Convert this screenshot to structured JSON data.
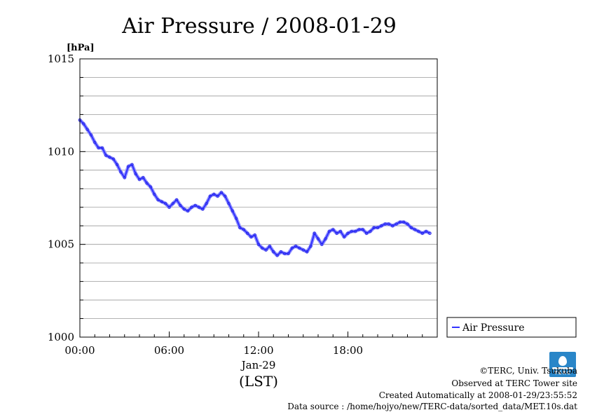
{
  "chart_data": {
    "type": "line",
    "title": "Air Pressure / 2008-01-29",
    "ylabel": "[hPa]",
    "xlabel": "(LST)",
    "x_date_label": "Jan-29",
    "ylim": [
      1000,
      1015
    ],
    "xlim": [
      0,
      24
    ],
    "y_ticks": [
      1000,
      1005,
      1010,
      1015
    ],
    "y_minor_step": 1,
    "x_ticks": [
      {
        "value": 0,
        "label": "00:00"
      },
      {
        "value": 6,
        "label": "06:00"
      },
      {
        "value": 12,
        "label": "12:00"
      },
      {
        "value": 18,
        "label": "18:00"
      }
    ],
    "grid": true,
    "legend_position": "right",
    "series": [
      {
        "name": "Air Pressure",
        "color": "#3333ff",
        "x": [
          0.0,
          0.25,
          0.5,
          0.75,
          1.0,
          1.25,
          1.5,
          1.75,
          2.0,
          2.25,
          2.5,
          2.75,
          3.0,
          3.25,
          3.5,
          3.75,
          4.0,
          4.25,
          4.5,
          4.75,
          5.0,
          5.25,
          5.5,
          5.75,
          6.0,
          6.25,
          6.5,
          6.75,
          7.0,
          7.25,
          7.5,
          7.75,
          8.0,
          8.25,
          8.5,
          8.75,
          9.0,
          9.25,
          9.5,
          9.75,
          10.0,
          10.25,
          10.5,
          10.75,
          11.0,
          11.25,
          11.5,
          11.75,
          12.0,
          12.25,
          12.5,
          12.75,
          13.0,
          13.25,
          13.5,
          13.75,
          14.0,
          14.25,
          14.5,
          14.75,
          15.0,
          15.25,
          15.5,
          15.75,
          16.0,
          16.25,
          16.5,
          16.75,
          17.0,
          17.25,
          17.5,
          17.75,
          18.0,
          18.25,
          18.5,
          18.75,
          19.0,
          19.25,
          19.5,
          19.75,
          20.0,
          20.25,
          20.5,
          20.75,
          21.0,
          21.25,
          21.5,
          21.75,
          22.0,
          22.25,
          22.5,
          22.75,
          23.0,
          23.25,
          23.5
        ],
        "y": [
          1011.7,
          1011.5,
          1011.2,
          1010.9,
          1010.5,
          1010.2,
          1010.2,
          1009.8,
          1009.7,
          1009.6,
          1009.3,
          1008.9,
          1008.6,
          1009.2,
          1009.3,
          1008.8,
          1008.5,
          1008.6,
          1008.3,
          1008.1,
          1007.7,
          1007.4,
          1007.3,
          1007.2,
          1007.0,
          1007.2,
          1007.4,
          1007.1,
          1006.9,
          1006.8,
          1007.0,
          1007.1,
          1007.0,
          1006.9,
          1007.2,
          1007.6,
          1007.7,
          1007.6,
          1007.8,
          1007.6,
          1007.2,
          1006.8,
          1006.4,
          1005.9,
          1005.8,
          1005.6,
          1005.4,
          1005.5,
          1005.0,
          1004.8,
          1004.7,
          1004.9,
          1004.6,
          1004.4,
          1004.6,
          1004.5,
          1004.5,
          1004.8,
          1004.9,
          1004.8,
          1004.7,
          1004.6,
          1004.9,
          1005.6,
          1005.3,
          1005.0,
          1005.3,
          1005.7,
          1005.8,
          1005.6,
          1005.7,
          1005.4,
          1005.6,
          1005.7,
          1005.7,
          1005.8,
          1005.8,
          1005.6,
          1005.7,
          1005.9,
          1005.9,
          1006.0,
          1006.1,
          1006.1,
          1006.0,
          1006.1,
          1006.2,
          1006.2,
          1006.1,
          1005.9,
          1005.8,
          1005.7,
          1005.6,
          1005.7,
          1005.6
        ]
      }
    ]
  },
  "credits": {
    "copyright": "©TERC, Univ. Tsukuba",
    "observed": "Observed at TERC Tower site",
    "created": "Created Automatically at 2008-01-29/23:55:52",
    "source": "Data source : /home/hojyo/new/TERC-data/sorted_data/MET.10s.dat",
    "logo_text": "TERC"
  }
}
